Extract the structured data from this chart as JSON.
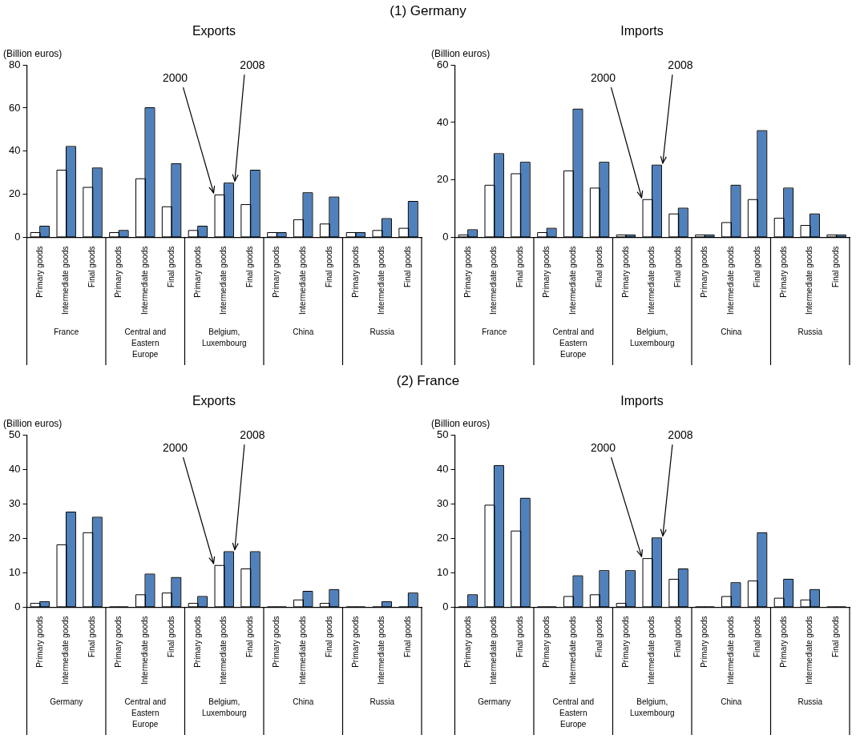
{
  "chart_data": [
    {
      "type": "bar",
      "subtitle": "(1) Germany",
      "title": "Exports",
      "ylabel": "(Billion euros)",
      "categories": [
        "Primary goods",
        "Intermediate goods",
        "Final goods",
        "Primary goods",
        "Intermediate goods",
        "Final goods",
        "Primary goods",
        "Intermediate goods",
        "Final goods",
        "Primary goods",
        "Intermediate goods",
        "Final goods",
        "Primary goods",
        "Intermediate goods",
        "Final goods"
      ],
      "series": [
        {
          "name": "2000",
          "color": "#ffffff",
          "values": [
            2,
            31,
            23,
            2,
            27,
            14,
            3,
            19.5,
            15,
            2,
            8,
            6,
            2,
            3,
            4
          ]
        },
        {
          "name": "2008",
          "color": "#4f81bd",
          "values": [
            5,
            42,
            32,
            3,
            60,
            34,
            5,
            25,
            31,
            2,
            20.5,
            18.5,
            2,
            8.5,
            16.5
          ]
        }
      ],
      "ylim": [
        0,
        80
      ],
      "yticks": [
        0,
        20,
        40,
        60,
        80
      ],
      "annotations": [
        "France",
        "Central and Eastern Europe",
        "Belgium, Luxembourg",
        "China",
        "Russia"
      ]
    },
    {
      "type": "bar",
      "title": "Imports",
      "ylabel": "(Billion euros)",
      "categories": [
        "Primary goods",
        "Intermediate goods",
        "Final goods",
        "Primary goods",
        "Intermediate goods",
        "Final goods",
        "Primary goods",
        "Intermediate goods",
        "Final goods",
        "Primary goods",
        "Intermediate goods",
        "Final goods",
        "Primary goods",
        "Intermediate goods",
        "Final goods"
      ],
      "series": [
        {
          "name": "2000",
          "color": "#ffffff",
          "values": [
            0.7,
            18,
            22,
            1.5,
            23,
            17,
            0.7,
            13,
            8,
            0.7,
            5,
            13,
            6.5,
            4,
            0.7
          ]
        },
        {
          "name": "2008",
          "color": "#4f81bd",
          "values": [
            2.5,
            29,
            26,
            3,
            44.5,
            26,
            0.7,
            25,
            10,
            0.7,
            18,
            37,
            17,
            8,
            0.7
          ]
        }
      ],
      "ylim": [
        0,
        60
      ],
      "yticks": [
        0,
        20,
        40,
        60
      ],
      "annotations": [
        "France",
        "Central and Eastern Europe",
        "Belgium, Luxembourg",
        "China",
        "Russia"
      ]
    },
    {
      "type": "bar",
      "subtitle": "(2) France",
      "title": "Exports",
      "ylabel": "(Billion euros)",
      "categories": [
        "Primary goods",
        "Intermediate goods",
        "Final goods",
        "Primary goods",
        "Intermediate goods",
        "Final goods",
        "Primary goods",
        "Intermediate goods",
        "Final goods",
        "Primary goods",
        "Intermediate goods",
        "Final goods",
        "Primary goods",
        "Intermediate goods",
        "Final goods"
      ],
      "series": [
        {
          "name": "2000",
          "color": "#ffffff",
          "values": [
            1,
            18,
            21.5,
            0,
            3.5,
            4,
            1,
            12,
            11,
            0,
            2,
            1,
            0,
            0,
            0
          ]
        },
        {
          "name": "2008",
          "color": "#4f81bd",
          "values": [
            1.5,
            27.5,
            26,
            0,
            9.5,
            8.5,
            3,
            16,
            16,
            0,
            4.5,
            5,
            0,
            1.5,
            4
          ]
        }
      ],
      "ylim": [
        0,
        50
      ],
      "yticks": [
        0,
        10,
        20,
        30,
        40,
        50
      ],
      "annotations": [
        "Germany",
        "Central and Eastern Europe",
        "Belgium, Luxembourg",
        "China",
        "Russia"
      ]
    },
    {
      "type": "bar",
      "title": "Imports",
      "ylabel": "(Billion euros)",
      "categories": [
        "Primary goods",
        "Intermediate goods",
        "Final goods",
        "Primary goods",
        "Intermediate goods",
        "Final goods",
        "Primary goods",
        "Intermediate goods",
        "Final goods",
        "Primary goods",
        "Intermediate goods",
        "Final goods",
        "Primary goods",
        "Intermediate goods",
        "Final goods"
      ],
      "series": [
        {
          "name": "2000",
          "color": "#ffffff",
          "values": [
            0,
            29.5,
            22,
            0,
            3,
            3.5,
            1,
            14,
            8,
            0,
            3,
            7.5,
            2.5,
            2,
            0
          ]
        },
        {
          "name": "2008",
          "color": "#4f81bd",
          "values": [
            3.5,
            41,
            31.5,
            0,
            9,
            10.5,
            10.5,
            20,
            11,
            0,
            7,
            21.5,
            8,
            5,
            0
          ]
        }
      ],
      "ylim": [
        0,
        50
      ],
      "yticks": [
        0,
        10,
        20,
        30,
        40,
        50
      ],
      "annotations": [
        "Germany",
        "Central and Eastern Europe",
        "Belgium, Luxembourg",
        "China",
        "Russia"
      ]
    }
  ]
}
